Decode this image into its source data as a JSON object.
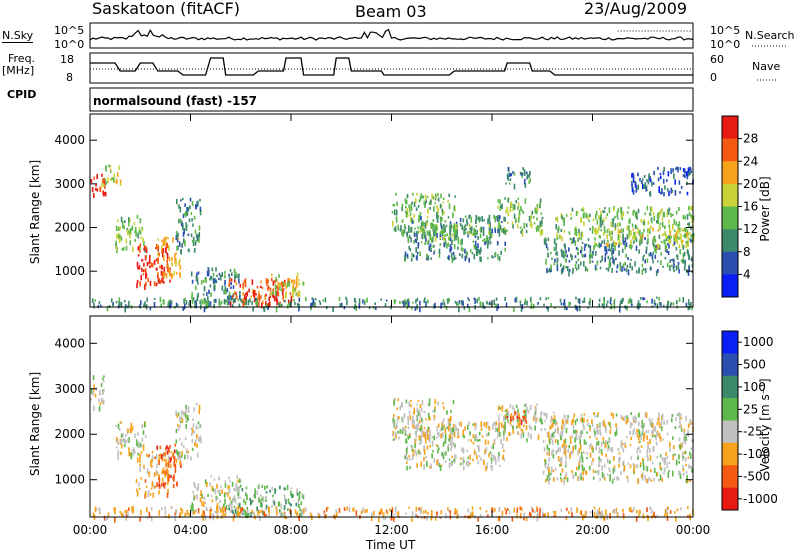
{
  "header": {
    "station": "Saskatoon (fitACF)",
    "beam": "Beam 03",
    "date": "23/Aug/2009"
  },
  "strip": {
    "nsky_label": "N.Sky",
    "nsearch_label": "N.Search",
    "freq_label_1": "Freq.",
    "freq_label_2": "[MHz]",
    "nave_label": "Nave",
    "cpid_label": "CPID",
    "cpid_value": "normalsound (fast) -157",
    "noise_ticks": [
      "10^5",
      "10^0"
    ],
    "freq_ticks": [
      "18",
      "8"
    ],
    "nave_ticks": [
      "60",
      "0"
    ]
  },
  "chart_data": [
    {
      "type": "heatmap",
      "name": "power-panel",
      "ylabel": "Slant Range [km]",
      "xlim": [
        0,
        24
      ],
      "ylim": [
        180,
        4600
      ],
      "yticks": [
        1000,
        2000,
        3000,
        4000
      ],
      "colorbar": {
        "label": "Power [dB]",
        "ticks": [
          "4",
          "8",
          "12",
          "16",
          "20",
          "24",
          "28"
        ],
        "colors": [
          "#0a1ff5",
          "#2a4fb0",
          "#3d8a6a",
          "#5fb84a",
          "#c8d33a",
          "#f7a21b",
          "#f45a12",
          "#e81b13"
        ]
      },
      "echo_regions": [
        {
          "t0": 0.0,
          "t1": 0.6,
          "r0": 2700,
          "r1": 3250,
          "level": 7
        },
        {
          "t0": 0.4,
          "t1": 1.2,
          "r0": 3000,
          "r1": 3450,
          "level": 4
        },
        {
          "t0": 1.0,
          "t1": 2.2,
          "r0": 1500,
          "r1": 2300,
          "level": 3
        },
        {
          "t0": 1.8,
          "t1": 3.2,
          "r0": 700,
          "r1": 1650,
          "level": 7
        },
        {
          "t0": 2.6,
          "t1": 3.6,
          "r0": 900,
          "r1": 1800,
          "level": 5
        },
        {
          "t0": 3.4,
          "t1": 4.4,
          "r0": 1500,
          "r1": 2700,
          "level": 2
        },
        {
          "t0": 4.0,
          "t1": 6.0,
          "r0": 300,
          "r1": 1100,
          "level": 2
        },
        {
          "t0": 5.5,
          "t1": 8.0,
          "r0": 300,
          "r1": 850,
          "level": 6
        },
        {
          "t0": 6.0,
          "t1": 7.5,
          "r0": 250,
          "r1": 550,
          "level": 7
        },
        {
          "t0": 7.0,
          "t1": 8.5,
          "r0": 500,
          "r1": 1000,
          "level": 4
        },
        {
          "t0": 0.0,
          "t1": 24.0,
          "r0": 180,
          "r1": 420,
          "level": 2
        },
        {
          "t0": 12.0,
          "t1": 14.5,
          "r0": 1900,
          "r1": 2800,
          "level": 3
        },
        {
          "t0": 12.5,
          "t1": 16.5,
          "r0": 1300,
          "r1": 2300,
          "level": 2
        },
        {
          "t0": 13.0,
          "t1": 16.0,
          "r0": 1700,
          "r1": 2100,
          "level": 3
        },
        {
          "t0": 16.2,
          "t1": 18.0,
          "r0": 1900,
          "r1": 2700,
          "level": 3
        },
        {
          "t0": 18.0,
          "t1": 24.0,
          "r0": 1000,
          "r1": 1800,
          "level": 2
        },
        {
          "t0": 18.5,
          "t1": 24.0,
          "r0": 1800,
          "r1": 2500,
          "level": 3
        },
        {
          "t0": 20.0,
          "t1": 24.0,
          "r0": 1600,
          "r1": 2000,
          "level": 4
        },
        {
          "t0": 16.5,
          "t1": 17.5,
          "r0": 3000,
          "r1": 3450,
          "level": 2
        },
        {
          "t0": 21.5,
          "t1": 24.0,
          "r0": 2800,
          "r1": 3400,
          "level": 1
        }
      ]
    },
    {
      "type": "heatmap",
      "name": "velocity-panel",
      "ylabel": "Slant Range [km]",
      "xlim": [
        0,
        24
      ],
      "ylim": [
        180,
        4600
      ],
      "yticks": [
        1000,
        2000,
        3000,
        4000
      ],
      "colorbar": {
        "label": "Velocity [m s⁻¹]",
        "ticks": [
          "1000",
          "500",
          "100",
          "25",
          "-25",
          "-100",
          "-500",
          "-1000"
        ],
        "colors": [
          "#0a1ff5",
          "#2a4fb0",
          "#3d8a6a",
          "#5fb84a",
          "#c0c0c0",
          "#f7a21b",
          "#f45a12",
          "#e81b13"
        ]
      },
      "echo_regions": [
        {
          "t0": 0.0,
          "t1": 0.6,
          "r0": 2600,
          "r1": 3300,
          "level": 4
        },
        {
          "t0": 1.0,
          "t1": 2.2,
          "r0": 1500,
          "r1": 2300,
          "level": 4
        },
        {
          "t0": 1.8,
          "t1": 3.2,
          "r0": 700,
          "r1": 1650,
          "level": 5
        },
        {
          "t0": 2.6,
          "t1": 3.6,
          "r0": 900,
          "r1": 1800,
          "level": 6
        },
        {
          "t0": 3.4,
          "t1": 4.4,
          "r0": 1500,
          "r1": 2700,
          "level": 4
        },
        {
          "t0": 4.0,
          "t1": 6.0,
          "r0": 300,
          "r1": 1100,
          "level": 4
        },
        {
          "t0": 5.5,
          "t1": 8.5,
          "r0": 250,
          "r1": 900,
          "level": 3
        },
        {
          "t0": 0.0,
          "t1": 24.0,
          "r0": 180,
          "r1": 420,
          "level": 5
        },
        {
          "t0": 12.0,
          "t1": 14.5,
          "r0": 1900,
          "r1": 2800,
          "level": 4
        },
        {
          "t0": 12.5,
          "t1": 16.5,
          "r0": 1300,
          "r1": 2300,
          "level": 4
        },
        {
          "t0": 16.2,
          "t1": 18.0,
          "r0": 1900,
          "r1": 2700,
          "level": 4
        },
        {
          "t0": 18.0,
          "t1": 24.0,
          "r0": 1000,
          "r1": 2500,
          "level": 4
        },
        {
          "t0": 16.5,
          "t1": 17.5,
          "r0": 2300,
          "r1": 2550,
          "level": 6
        }
      ]
    }
  ],
  "x_axis": {
    "label": "Time UT",
    "ticks": [
      "00:00",
      "04:00",
      "08:00",
      "12:00",
      "16:00",
      "20:00",
      "00:00"
    ]
  }
}
